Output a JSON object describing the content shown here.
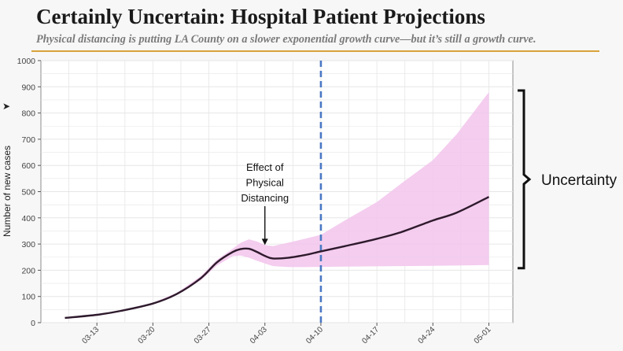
{
  "title": "Certainly Uncertain: Hospital Patient Projections",
  "subtitle": "Physical distancing is putting LA County on a slower exponential growth curve—but it’s still a growth curve.",
  "colors": {
    "line": "#2e1a2c",
    "band": "#f2c4ec",
    "grid": "#e6e6e6",
    "vline": "#4a78c4",
    "accent_rule": "#d9a23b"
  },
  "chart_data": {
    "type": "line",
    "title": "Certainly Uncertain: Hospital Patient Projections",
    "subtitle": "Physical distancing is putting LA County on a slower exponential growth curve—but it’s still a growth curve.",
    "xlabel": "",
    "ylabel": "Number of new cases",
    "xlim": [
      "2020-03-06",
      "2020-05-04"
    ],
    "ylim": [
      0,
      1000
    ],
    "grid": true,
    "legend": "none",
    "x_ticks": [
      "03-13",
      "03-20",
      "03-27",
      "04-03",
      "04-10",
      "04-17",
      "04-24",
      "05-01"
    ],
    "y_ticks": [
      0,
      100,
      200,
      300,
      400,
      500,
      600,
      700,
      800,
      900,
      1000
    ],
    "x": [
      "2020-03-09",
      "2020-03-13",
      "2020-03-16",
      "2020-03-20",
      "2020-03-23",
      "2020-03-26",
      "2020-03-28",
      "2020-03-30",
      "2020-03-31",
      "2020-04-01",
      "2020-04-02",
      "2020-04-03",
      "2020-04-04",
      "2020-04-06",
      "2020-04-08",
      "2020-04-10",
      "2020-04-13",
      "2020-04-17",
      "2020-04-20",
      "2020-04-24",
      "2020-04-27",
      "2020-05-01"
    ],
    "series": [
      {
        "values": [
          18,
          30,
          45,
          73,
          110,
          170,
          230,
          270,
          281,
          282,
          270,
          255,
          245,
          248,
          258,
          272,
          292,
          320,
          345,
          390,
          420,
          480
        ],
        "upper": [
          19,
          31,
          46,
          76,
          114,
          178,
          240,
          283,
          305,
          318,
          310,
          296,
          292,
          306,
          320,
          335,
          390,
          460,
          530,
          620,
          720,
          880
        ],
        "lower": [
          17,
          29,
          44,
          70,
          106,
          162,
          218,
          254,
          256,
          248,
          236,
          226,
          216,
          212,
          212,
          213,
          214,
          215,
          216,
          217,
          218,
          220
        ]
      }
    ],
    "vline": {
      "x": "2020-04-10",
      "style": "dashed"
    },
    "annotations": [
      {
        "text": [
          "Effect of",
          "Physical",
          "Distancing"
        ],
        "x": "2020-04-03",
        "y": 290,
        "arrow": true
      },
      {
        "text": "Uncertainty",
        "type": "bracket",
        "y_range": [
          220,
          880
        ]
      }
    ]
  }
}
